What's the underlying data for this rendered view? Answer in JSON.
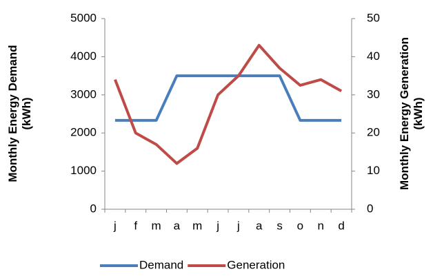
{
  "chart_data": {
    "type": "line",
    "categories": [
      "j",
      "f",
      "m",
      "a",
      "m",
      "j",
      "j",
      "a",
      "s",
      "o",
      "n",
      "d"
    ],
    "series": [
      {
        "name": "Demand",
        "color": "#4a7ebb",
        "values": [
          2330,
          2330,
          2330,
          3500,
          3500,
          3500,
          3500,
          3500,
          3500,
          2330,
          2330,
          2330
        ]
      },
      {
        "name": "Generation",
        "color": "#be4b48",
        "axis": "y2",
        "values": [
          34,
          20,
          17,
          12,
          16,
          30,
          35,
          43,
          37,
          32.5,
          34,
          31
        ]
      }
    ],
    "ylabel": [
      "Monthly Energy Demand",
      "(kWh)"
    ],
    "y2label": [
      "Monthly Energy Generation",
      "(kWh)"
    ],
    "ylim": [
      0,
      5000
    ],
    "yticks": [
      0,
      1000,
      2000,
      3000,
      4000,
      5000
    ],
    "y2lim": [
      0,
      50
    ],
    "y2ticks": [
      0,
      10,
      20,
      30,
      40,
      50
    ],
    "legend": "bottom"
  }
}
